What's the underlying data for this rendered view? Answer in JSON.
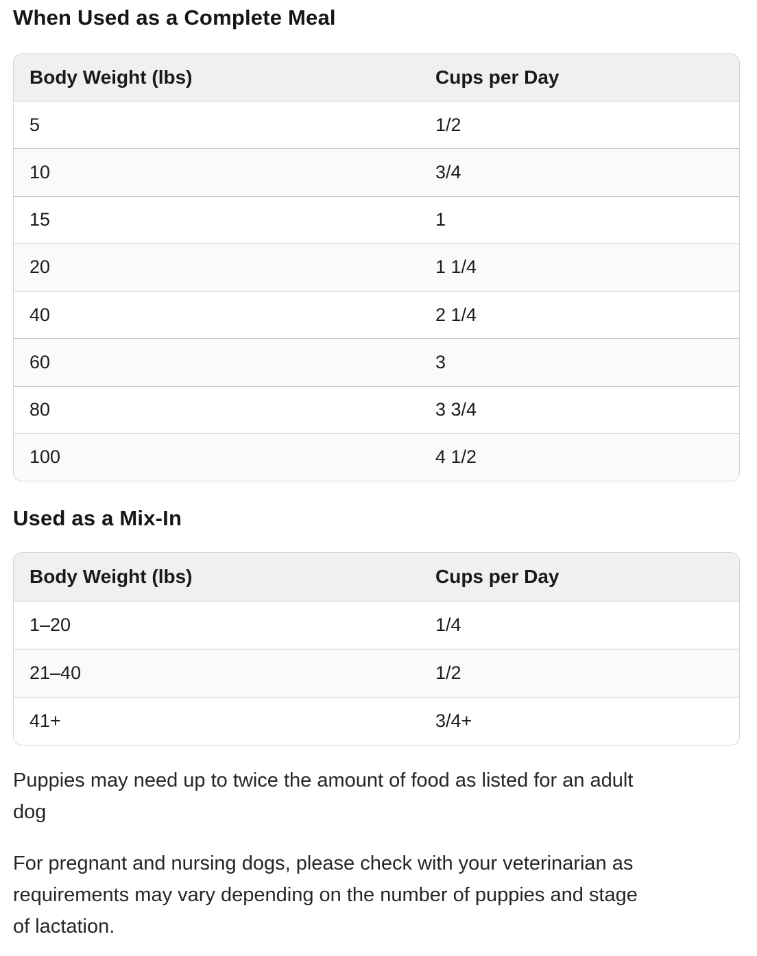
{
  "colors": {
    "page_background": "#ffffff",
    "heading_text": "#161616",
    "cell_text": "#1c1c1c",
    "note_text": "#262626",
    "table_header_background": "#f0f0f0",
    "table_stripe_background": "#fafafa",
    "table_border": "#d4d4d4",
    "row_divider": "#c8c8c8"
  },
  "sections": {
    "complete_meal": {
      "heading": "When Used as a Complete Meal",
      "table": {
        "columns": [
          "Body Weight (lbs)",
          "Cups per Day"
        ],
        "rows": [
          [
            "5",
            "1/2"
          ],
          [
            "10",
            "3/4"
          ],
          [
            "15",
            "1"
          ],
          [
            "20",
            "1 1/4"
          ],
          [
            "40",
            "2 1/4"
          ],
          [
            "60",
            "3"
          ],
          [
            "80",
            "3 3/4"
          ],
          [
            "100",
            "4 1/2"
          ]
        ]
      }
    },
    "mix_in": {
      "heading": "Used as a Mix-In",
      "table": {
        "columns": [
          "Body Weight (lbs)",
          "Cups per Day"
        ],
        "rows": [
          [
            "1–20",
            "1/4"
          ],
          [
            "21–40",
            "1/2"
          ],
          [
            "41+",
            "3/4+"
          ]
        ]
      }
    },
    "notes": [
      "Puppies may need up to twice the amount of food as listed for an adult\ndog",
      "For pregnant and nursing dogs, please check with your veterinarian as\nrequirements may vary depending on the number of puppies and stage\nof lactation."
    ]
  }
}
